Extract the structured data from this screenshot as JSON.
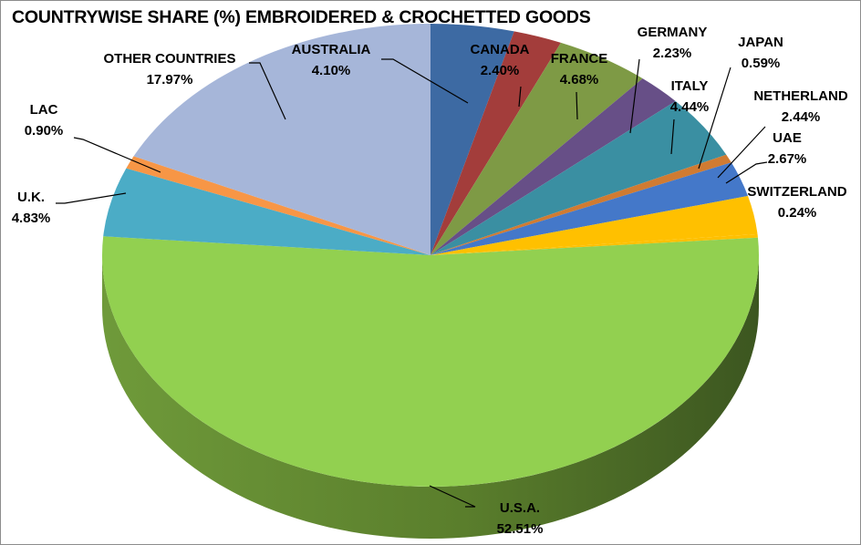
{
  "chart_data": {
    "type": "pie",
    "title": "COUNTRYWISE SHARE (%) EMBROIDERED & CROCHETTED GOODS",
    "unit": "%",
    "slices": [
      {
        "label": "AUSTRALIA",
        "value": 4.1,
        "display": "4.10%",
        "color": "#3d6aa3"
      },
      {
        "label": "CANADA",
        "value": 2.4,
        "display": "2.40%",
        "color": "#a33d3b"
      },
      {
        "label": "FRANCE",
        "value": 4.68,
        "display": "4.68%",
        "color": "#7e9a45"
      },
      {
        "label": "GERMANY",
        "value": 2.23,
        "display": "2.23%",
        "color": "#674f87"
      },
      {
        "label": "ITALY",
        "value": 4.44,
        "display": "4.44%",
        "color": "#3a8fa2"
      },
      {
        "label": "JAPAN",
        "value": 0.59,
        "display": "0.59%",
        "color": "#d07b32"
      },
      {
        "label": "NETHERLAND",
        "value": 2.44,
        "display": "2.44%",
        "color": "#4478c9"
      },
      {
        "label": "UAE",
        "value": 2.67,
        "display": "2.67%",
        "color": "#ffc000"
      },
      {
        "label": "SWITZERLAND",
        "value": 0.24,
        "display": "0.24%",
        "color": "#ffc000"
      },
      {
        "label": "U.S.A.",
        "value": 52.51,
        "display": "52.51%",
        "color": "#92d050"
      },
      {
        "label": "U.K.",
        "value": 4.83,
        "display": "4.83%",
        "color": "#4bacc6"
      },
      {
        "label": "LAC",
        "value": 0.9,
        "display": "0.90%",
        "color": "#f79646"
      },
      {
        "label": "OTHER COUNTRIES",
        "value": 17.97,
        "display": "17.97%",
        "color": "#a6b6d9"
      }
    ]
  }
}
